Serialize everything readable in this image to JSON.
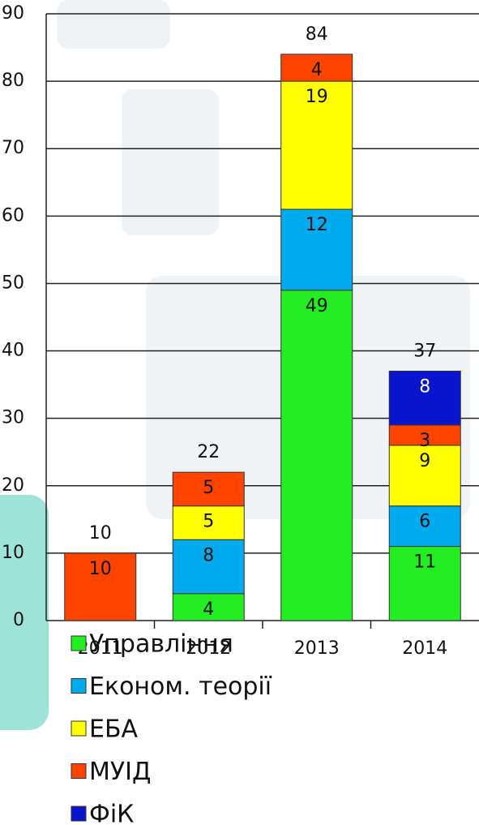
{
  "chart_data": {
    "type": "stacked_bar",
    "categories": [
      "2011",
      "2012",
      "2013",
      "2014"
    ],
    "series": [
      {
        "name": "Управління",
        "color": "#22ee22",
        "values": [
          null,
          4,
          49,
          11
        ]
      },
      {
        "name": "Економ. теорії",
        "color": "#00aaee",
        "values": [
          null,
          8,
          12,
          6
        ]
      },
      {
        "name": "ЕБА",
        "color": "#ffff00",
        "values": [
          null,
          5,
          19,
          9
        ]
      },
      {
        "name": "МУІД",
        "color": "#ff4400",
        "values": [
          10,
          5,
          4,
          3
        ]
      },
      {
        "name": "ФіК",
        "color": "#0a14cc",
        "values": [
          null,
          null,
          null,
          8
        ]
      }
    ],
    "totals": [
      10,
      22,
      84,
      37
    ],
    "ylim": [
      0,
      90
    ],
    "yticks": [
      0,
      10,
      20,
      30,
      40,
      50,
      60,
      70,
      80,
      90
    ],
    "grid": true
  }
}
